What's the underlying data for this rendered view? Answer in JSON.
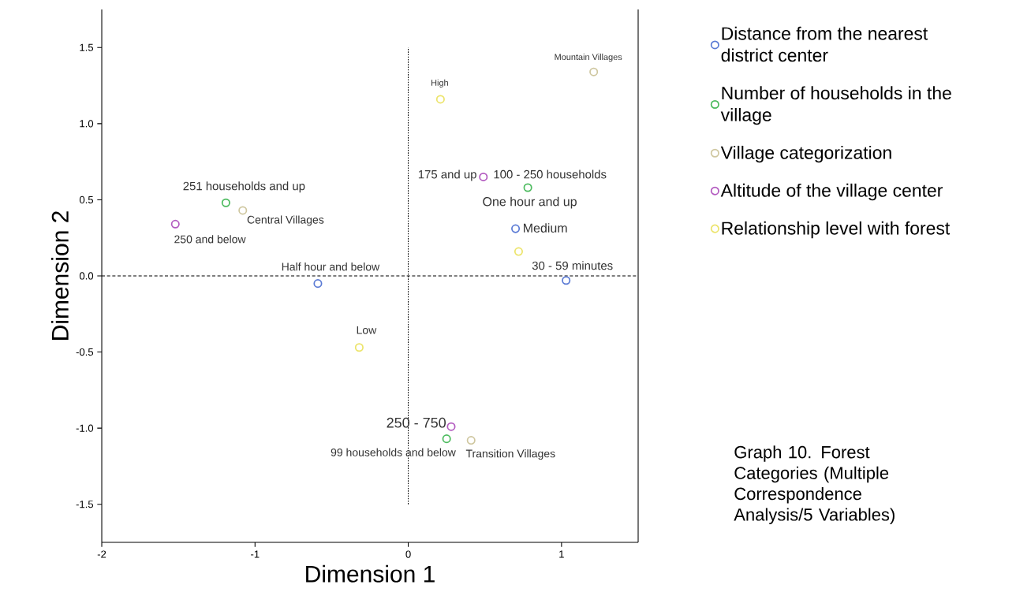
{
  "chart_data": {
    "type": "scatter",
    "xlabel": "Dimension 1",
    "ylabel": "Dimension 2",
    "xlim": [
      -2,
      1.5
    ],
    "ylim": [
      -1.75,
      1.75
    ],
    "xticks": [
      -2,
      -1,
      0,
      1
    ],
    "yticks": [
      {
        "value": -1.5,
        "label": "-1.5"
      },
      {
        "value": -1,
        "label": "-1.0"
      },
      {
        "value": -0.5,
        "label": "-0.5"
      },
      {
        "value": 0,
        "label": "0.0"
      },
      {
        "value": 0.5,
        "label": "0.5"
      },
      {
        "value": 1,
        "label": "1.0"
      },
      {
        "value": 1.5,
        "label": "1.5"
      }
    ],
    "marker": "circle",
    "grid": false,
    "legend": "right",
    "series": [
      {
        "name": "Distance from the nearest district center",
        "color": "#5b7bd5",
        "x": [
          -0.59,
          0.7,
          1.03
        ],
        "values": [
          -0.05,
          0.31,
          -0.03
        ]
      },
      {
        "name": "Number of households in the village",
        "color": "#4dbb5f",
        "x": [
          -1.19,
          0.78,
          0.25
        ],
        "values": [
          0.48,
          0.58,
          -1.07
        ]
      },
      {
        "name": "Village categorization",
        "color": "#cfc7a0",
        "x": [
          -1.08,
          1.21,
          0.41
        ],
        "values": [
          0.43,
          1.34,
          -1.08
        ]
      },
      {
        "name": "Altitude of the village center",
        "color": "#b35bc0",
        "x": [
          -1.52,
          0.49,
          0.28
        ],
        "values": [
          0.34,
          0.65,
          -0.99
        ]
      },
      {
        "name": "Relationship level with forest",
        "color": "#ece46a",
        "x": [
          0.21,
          0.72,
          -0.32
        ],
        "values": [
          1.16,
          0.16,
          -0.47
        ]
      }
    ],
    "ref_lines": [
      {
        "axis": "x",
        "value": 0,
        "line_style": "dotted"
      },
      {
        "axis": "y",
        "value": 0,
        "line_style": "dashed"
      }
    ],
    "annotations": [
      {
        "text": "Half hour and below",
        "x": -0.59,
        "y": -0.05
      },
      {
        "text": "One hour and up",
        "x": 0.7,
        "y": 0.31
      },
      {
        "text": "30 - 59 minutes",
        "x": 1.03,
        "y": -0.03
      },
      {
        "text": "251 households and up",
        "x": -1.19,
        "y": 0.48
      },
      {
        "text": "100 - 250 households",
        "x": 0.78,
        "y": 0.58
      },
      {
        "text": "99 households and below",
        "x": 0.25,
        "y": -1.07
      },
      {
        "text": "Central Villages",
        "x": -1.08,
        "y": 0.43
      },
      {
        "text": "Mountain Villages",
        "x": 1.21,
        "y": 1.34
      },
      {
        "text": "Transition Villages",
        "x": 0.41,
        "y": -1.08
      },
      {
        "text": "250 and below",
        "x": -1.52,
        "y": 0.34
      },
      {
        "text": "175 and up",
        "x": 0.49,
        "y": 0.65
      },
      {
        "text": "250 - 750",
        "x": 0.28,
        "y": -0.99
      },
      {
        "text": "High",
        "x": 0.21,
        "y": 1.16
      },
      {
        "text": "Medium",
        "x": 0.72,
        "y": 0.16
      },
      {
        "text": "Low",
        "x": -0.32,
        "y": -0.47
      },
      "Graph 10. Forest Categories (Multiple Correspondence Analysis/5 Variables)"
    ]
  }
}
